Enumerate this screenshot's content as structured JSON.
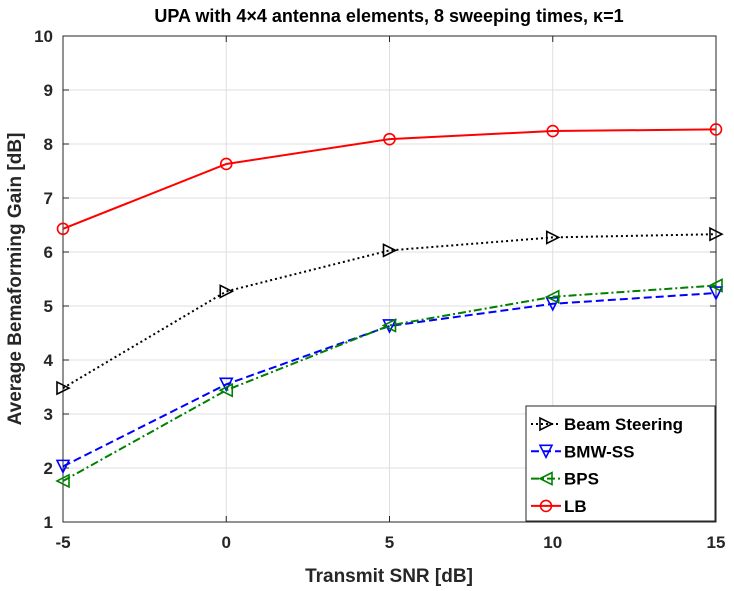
{
  "chart_data": {
    "type": "line",
    "title": "UPA with 4×4 antenna elements, 8 sweeping times, κ=1",
    "xlabel": "Transmit SNR [dB]",
    "ylabel": "Average Bemaforming Gain [dB]",
    "x": [
      -5,
      0,
      5,
      10,
      15
    ],
    "x_tick_labels": [
      "-5",
      "0",
      "5",
      "10",
      "15"
    ],
    "y_tick_labels": [
      "1",
      "2",
      "3",
      "4",
      "5",
      "6",
      "7",
      "8",
      "9",
      "10"
    ],
    "xlim": [
      -5,
      15
    ],
    "ylim": [
      1,
      10
    ],
    "grid": true,
    "legend_position": "bottom-right",
    "series": [
      {
        "name": "Beam Steering",
        "values": [
          3.48,
          5.27,
          6.03,
          6.27,
          6.33
        ],
        "color": "#000000",
        "dash": "dotted",
        "marker": "triangle-right"
      },
      {
        "name": "BMW-SS",
        "values": [
          2.03,
          3.55,
          4.63,
          5.04,
          5.24
        ],
        "color": "#0000ff",
        "dash": "dashed",
        "marker": "triangle-down"
      },
      {
        "name": "BPS",
        "values": [
          1.76,
          3.44,
          4.64,
          5.17,
          5.38
        ],
        "color": "#008000",
        "dash": "dashdot",
        "marker": "triangle-left"
      },
      {
        "name": "LB",
        "values": [
          6.43,
          7.63,
          8.09,
          8.24,
          8.27
        ],
        "color": "#ff0000",
        "dash": "solid",
        "marker": "circle"
      }
    ]
  }
}
